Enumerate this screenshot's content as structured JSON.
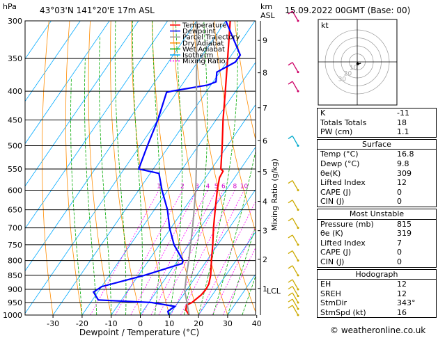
{
  "header": {
    "hpa_label": "hPa",
    "location": "43°03'N  141°20'E  17m  ASL",
    "km_label": "km",
    "asl_label": "ASL",
    "datetime": "15.09.2022  00GMT  (Base: 00)"
  },
  "chart_data": {
    "type": "skew-t",
    "xlabel": "Dewpoint / Temperature (°C)",
    "ylabel_right": "Mixing Ratio (g/kg)",
    "y_units": "hPa",
    "pressure_ticks": [
      300,
      350,
      400,
      450,
      500,
      550,
      600,
      650,
      700,
      750,
      800,
      850,
      900,
      950,
      1000
    ],
    "temp_ticks": [
      -30,
      -20,
      -10,
      0,
      10,
      20,
      30,
      40
    ],
    "xlim": [
      -35,
      40
    ],
    "ylim": [
      1000,
      300
    ],
    "height_km_ticks": [
      {
        "km": "9",
        "p": 325
      },
      {
        "km": "8",
        "p": 371
      },
      {
        "km": "7",
        "p": 428
      },
      {
        "km": "6",
        "p": 490
      },
      {
        "km": "5",
        "p": 556
      },
      {
        "km": "4",
        "p": 628
      },
      {
        "km": "3",
        "p": 708
      },
      {
        "km": "2",
        "p": 796
      },
      {
        "km": "1",
        "p": 897
      }
    ],
    "lcl": {
      "label": "LCL",
      "p": 905
    },
    "mixing_ratio_labels": [
      "1",
      "2",
      "3",
      "4",
      "5",
      "6",
      "8",
      "10",
      "15",
      "20",
      "25"
    ],
    "mixing_ratio_values": [
      1,
      2,
      3,
      4,
      5,
      6,
      8,
      10,
      15,
      20,
      25
    ],
    "legend": [
      {
        "name": "Temperature",
        "color": "#ff0000",
        "dash": ""
      },
      {
        "name": "Dewpoint",
        "color": "#0000ff",
        "dash": ""
      },
      {
        "name": "Parcel Trajectory",
        "color": "#999999",
        "dash": ""
      },
      {
        "name": "Dry Adiabat",
        "color": "#ff8c00",
        "dash": ""
      },
      {
        "name": "Wet Adiabat",
        "color": "#00aa00",
        "dash": ""
      },
      {
        "name": "Isotherm",
        "color": "#00aaff",
        "dash": ""
      },
      {
        "name": "Mixing Ratio",
        "color": "#ff00ff",
        "dash": "2,2"
      }
    ],
    "series": [
      {
        "name": "Temperature",
        "points": [
          [
            1000,
            16.8
          ],
          [
            980,
            14.5
          ],
          [
            960,
            13.5
          ],
          [
            950,
            14.8
          ],
          [
            920,
            16.2
          ],
          [
            900,
            16.5
          ],
          [
            880,
            16.2
          ],
          [
            850,
            14.8
          ],
          [
            800,
            11.6
          ],
          [
            750,
            8.3
          ],
          [
            700,
            4.6
          ],
          [
            650,
            0.9
          ],
          [
            600,
            -3.0
          ],
          [
            570,
            -5.2
          ],
          [
            555,
            -5.5
          ],
          [
            550,
            -6.8
          ],
          [
            500,
            -11.8
          ],
          [
            450,
            -17.6
          ],
          [
            400,
            -23.6
          ],
          [
            350,
            -30.5
          ],
          [
            300,
            -38.5
          ]
        ]
      },
      {
        "name": "Dewpoint",
        "points": [
          [
            1000,
            9.8
          ],
          [
            985,
            8.6
          ],
          [
            965,
            9.8
          ],
          [
            950,
            1.0
          ],
          [
            940,
            -18.0
          ],
          [
            910,
            -21.5
          ],
          [
            890,
            -20.0
          ],
          [
            850,
            -8.0
          ],
          [
            810,
            2.2
          ],
          [
            800,
            1.8
          ],
          [
            750,
            -5.0
          ],
          [
            700,
            -10.5
          ],
          [
            650,
            -15.5
          ],
          [
            600,
            -22.0
          ],
          [
            560,
            -27.0
          ],
          [
            550,
            -35.0
          ],
          [
            500,
            -37.5
          ],
          [
            450,
            -40.0
          ],
          [
            402,
            -43.5
          ],
          [
            400,
            -42.0
          ],
          [
            390,
            -31.0
          ],
          [
            385,
            -29.0
          ],
          [
            370,
            -31.0
          ],
          [
            355,
            -27.0
          ],
          [
            345,
            -27.0
          ],
          [
            300,
            -40.0
          ]
        ]
      },
      {
        "name": "Parcel Trajectory",
        "points": [
          [
            1000,
            16.8
          ],
          [
            905,
            9.5
          ],
          [
            850,
            6.5
          ],
          [
            800,
            3.8
          ],
          [
            700,
            -2.6
          ],
          [
            600,
            -10.4
          ],
          [
            500,
            -20.5
          ],
          [
            400,
            -33.5
          ],
          [
            300,
            -50.0
          ]
        ]
      }
    ],
    "wind_barbs_p": [
      1000,
      975,
      950,
      925,
      900,
      850,
      800,
      750,
      700,
      650,
      600,
      500,
      400,
      370,
      300
    ],
    "hodograph": {
      "label": "kt",
      "rings_kt": [
        10,
        20,
        30,
        40
      ],
      "ring_labels": [
        "10",
        "20",
        "30"
      ],
      "points_kt": [
        [
          0,
          0
        ],
        [
          0.5,
          -1.5
        ],
        [
          1.5,
          -2.5
        ],
        [
          3.5,
          -2.0
        ],
        [
          4.5,
          -1.6
        ]
      ],
      "storm_motion_kt": [
        0.6,
        -2.4
      ]
    }
  },
  "indices": {
    "k_label": "K",
    "k_value": "-11",
    "totals_label": "Totals Totals",
    "totals_value": "18",
    "pw_label": "PW (cm)",
    "pw_value": "1.1"
  },
  "surface": {
    "title": "Surface",
    "temp_label": "Temp (°C)",
    "temp_value": "16.8",
    "dewp_label": "Dewp (°C)",
    "dewp_value": "9.8",
    "thetae_label": "θe(K)",
    "thetae_value": "309",
    "li_label": "Lifted Index",
    "li_value": "12",
    "cape_label": "CAPE (J)",
    "cape_value": "0",
    "cin_label": "CIN (J)",
    "cin_value": "0"
  },
  "most_unstable": {
    "title": "Most Unstable",
    "pressure_label": "Pressure (mb)",
    "pressure_value": "815",
    "thetae_label": "θe (K)",
    "thetae_value": "319",
    "li_label": "Lifted Index",
    "li_value": "7",
    "cape_label": "CAPE (J)",
    "cape_value": "0",
    "cin_label": "CIN (J)",
    "cin_value": "0"
  },
  "hodograph_box": {
    "title": "Hodograph",
    "eh_label": "EH",
    "eh_value": "12",
    "sreh_label": "SREH",
    "sreh_value": "12",
    "stmdir_label": "StmDir",
    "stmdir_value": "343°",
    "stmspd_label": "StmSpd (kt)",
    "stmspd_value": "16"
  },
  "footer": {
    "credit": "© weatheronline.co.uk"
  }
}
